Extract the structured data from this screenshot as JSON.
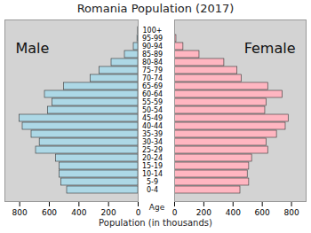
{
  "chart_data": {
    "type": "bar",
    "orientation": "horizontal",
    "title": "Romania Population (2017)",
    "xlabel": "Population (in thousands)",
    "ylabel": "Age",
    "categories": [
      "0-4",
      "5-9",
      "10-14",
      "15-19",
      "20-24",
      "25-29",
      "30-34",
      "35-39",
      "40-44",
      "45-49",
      "50-54",
      "55-59",
      "60-64",
      "65-69",
      "70-74",
      "75-79",
      "80-84",
      "85-89",
      "90-94",
      "95-99",
      "100+"
    ],
    "series": [
      {
        "name": "Male",
        "color": "#add8e6",
        "values": [
          480,
          520,
          530,
          530,
          555,
          690,
          665,
          720,
          780,
          800,
          610,
          580,
          630,
          500,
          320,
          260,
          180,
          90,
          30,
          5,
          1
        ]
      },
      {
        "name": "Female",
        "color": "#ffb6c1",
        "values": [
          450,
          510,
          500,
          510,
          530,
          640,
          630,
          700,
          760,
          780,
          620,
          630,
          740,
          640,
          460,
          430,
          340,
          170,
          60,
          12,
          1
        ]
      }
    ],
    "xlim": [
      0,
      900
    ],
    "xticks": [
      0,
      200,
      400,
      600,
      800
    ],
    "grid": false
  }
}
